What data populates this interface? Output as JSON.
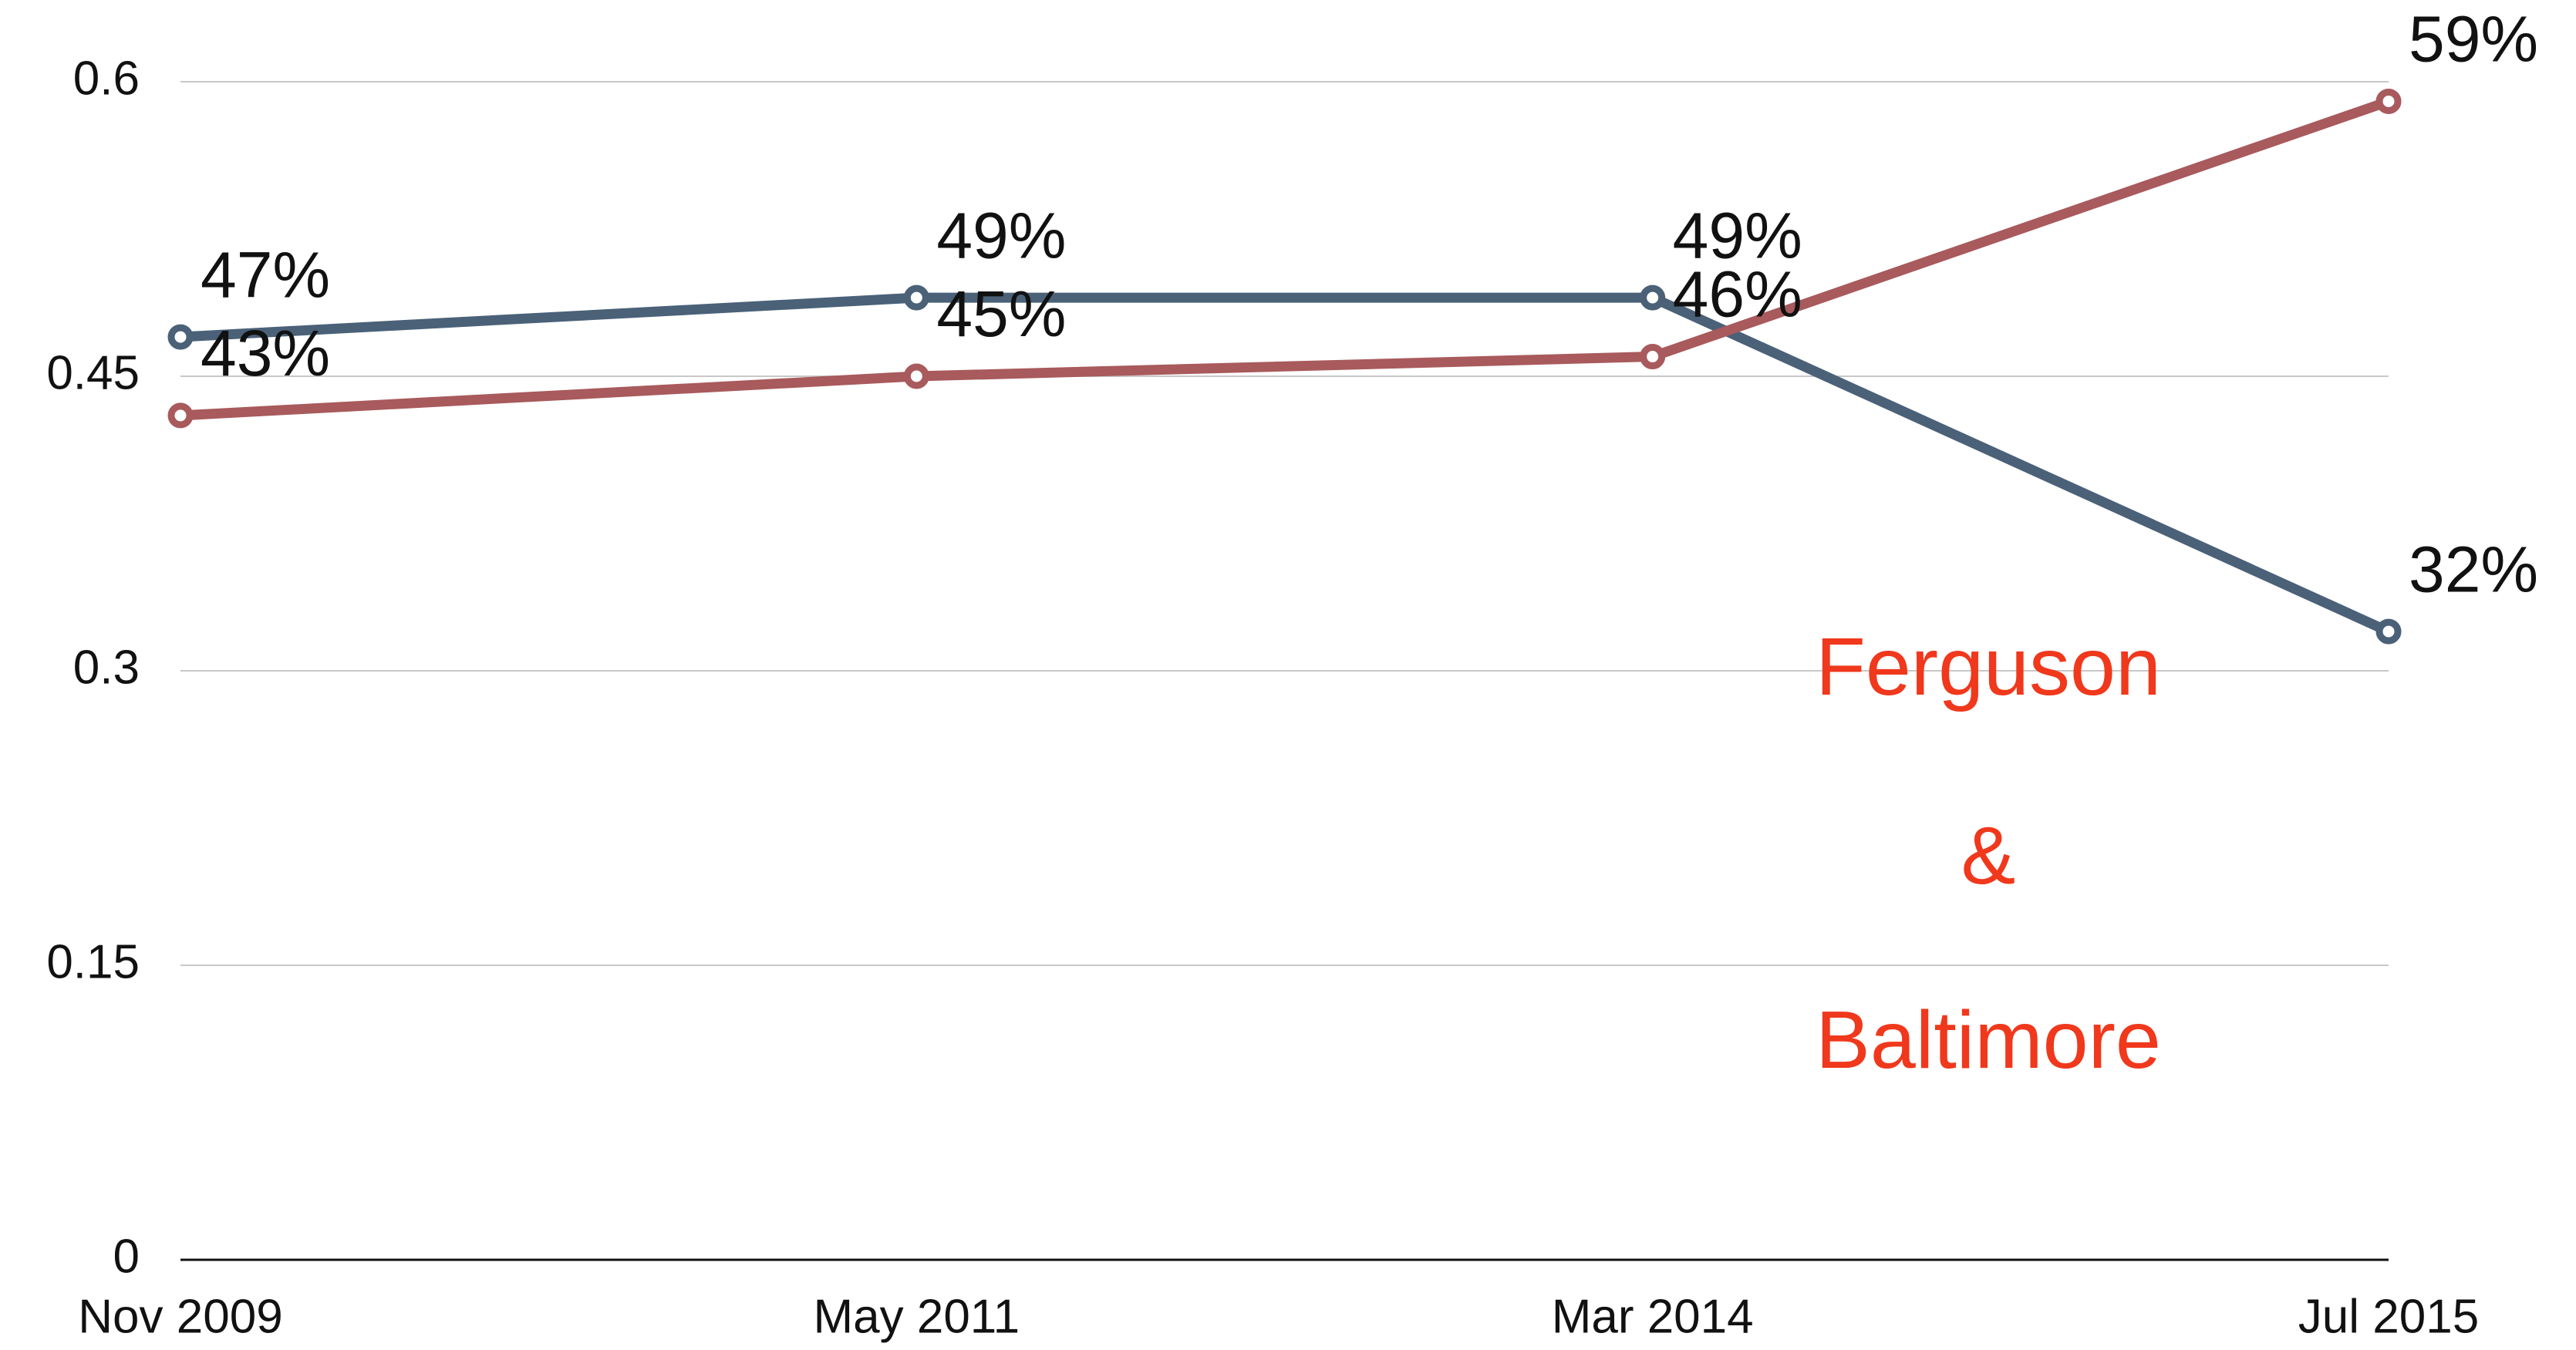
{
  "chart_data": {
    "type": "line",
    "categories": [
      "Nov 2009",
      "May 2011",
      "Mar 2014",
      "Jul 2015"
    ],
    "series": [
      {
        "color": "#4a6178",
        "values": [
          0.47,
          0.49,
          0.49,
          0.32
        ],
        "value_labels": [
          "47%",
          "49%",
          "49%",
          "32%"
        ]
      },
      {
        "color": "#a85a5c",
        "values": [
          0.43,
          0.45,
          0.46,
          0.59
        ],
        "value_labels": [
          "43%",
          "45%",
          "46%",
          "59%"
        ]
      }
    ],
    "ylim": [
      0,
      0.6
    ],
    "yticks": [
      0,
      0.15,
      0.3,
      0.45,
      0.6
    ],
    "grid": true,
    "annotation_lines": [
      "Ferguson",
      "&",
      "Baltimore"
    ]
  }
}
